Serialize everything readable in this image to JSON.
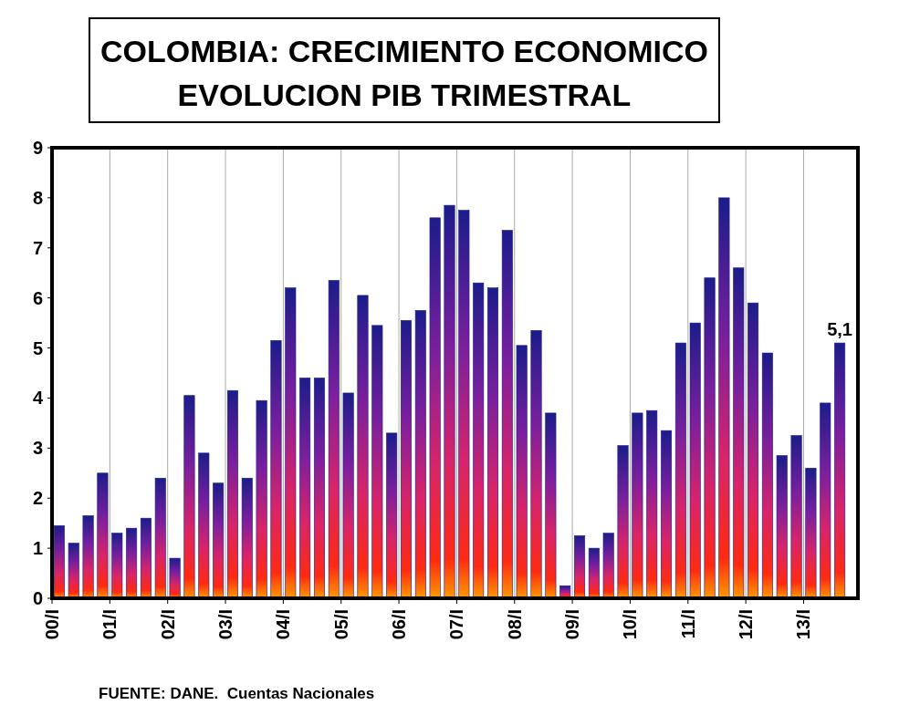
{
  "chart_data": {
    "type": "bar",
    "title": "COLOMBIA: CRECIMIENTO ECONOMICO\nEVOLUCION PIB TRIMESTRAL",
    "categories": [
      "00/I",
      null,
      null,
      null,
      "01/I",
      null,
      null,
      null,
      "02/I",
      null,
      null,
      null,
      "03/I",
      null,
      null,
      null,
      "04/I",
      null,
      null,
      null,
      "05/I",
      null,
      null,
      null,
      "06/I",
      null,
      null,
      null,
      "07/I",
      null,
      null,
      null,
      "08/I",
      null,
      null,
      null,
      "09/I",
      null,
      null,
      null,
      "10/I",
      null,
      null,
      null,
      "11/I",
      null,
      null,
      null,
      "12/I",
      null,
      null,
      null,
      "13/I",
      null,
      null
    ],
    "values": [
      1.45,
      1.1,
      1.65,
      2.5,
      1.3,
      1.4,
      1.6,
      2.4,
      0.8,
      4.05,
      2.9,
      2.3,
      4.15,
      2.4,
      3.95,
      5.15,
      6.2,
      4.4,
      4.4,
      6.35,
      4.1,
      6.05,
      5.45,
      3.3,
      5.55,
      5.75,
      7.6,
      7.85,
      7.75,
      6.3,
      6.2,
      7.35,
      5.05,
      5.35,
      3.7,
      0.25,
      1.25,
      1.0,
      1.3,
      3.05,
      3.7,
      3.75,
      3.35,
      5.1,
      5.5,
      6.4,
      8.0,
      6.6,
      5.9,
      4.9,
      2.85,
      3.25,
      2.6,
      3.9,
      5.1
    ],
    "value_labels": [
      null,
      null,
      null,
      null,
      null,
      null,
      null,
      null,
      null,
      null,
      null,
      null,
      null,
      null,
      null,
      null,
      null,
      null,
      null,
      null,
      null,
      null,
      null,
      null,
      null,
      null,
      null,
      null,
      null,
      null,
      null,
      null,
      null,
      null,
      null,
      null,
      null,
      null,
      null,
      null,
      null,
      null,
      null,
      null,
      null,
      null,
      null,
      null,
      null,
      null,
      null,
      null,
      null,
      null,
      "5,1"
    ],
    "color": "#1c1c8a",
    "ylim": [
      0,
      9
    ],
    "yticks": [
      0,
      1,
      2,
      3,
      4,
      5,
      6,
      7,
      8,
      9
    ],
    "grid": "x",
    "annotations": [
      "FUENTE: DANE.  Cuentas Nacionales"
    ]
  }
}
